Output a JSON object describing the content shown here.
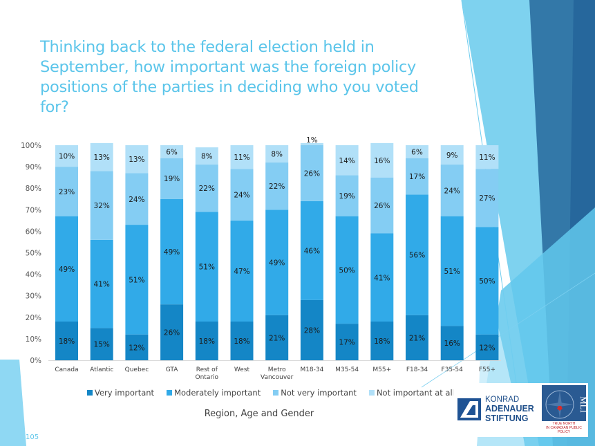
{
  "slide": {
    "title": "Thinking back to the federal election held in September, how important was the foreign policy positions of the parties in deciding who you voted for?",
    "page_number": "105",
    "x_axis_title": "Region, Age and Gender",
    "logos": {
      "kas_line1": "KONRAD",
      "kas_line2": "ADENAUER",
      "kas_line3": "STIFTUNG",
      "mli_name": "MLI",
      "mli_tagline1": "TRUE NORTH",
      "mli_tagline2": "IN CANADIAN PUBLIC POLICY"
    }
  },
  "chart_data": {
    "type": "bar",
    "stacked": true,
    "title": "Thinking back to the federal election held in September, how important was the foreign policy positions of the parties in deciding who you voted for?",
    "xlabel": "Region, Age and Gender",
    "ylabel": "",
    "ylim": [
      0,
      100
    ],
    "yticks": [
      "0%",
      "10%",
      "20%",
      "30%",
      "40%",
      "50%",
      "60%",
      "70%",
      "80%",
      "90%",
      "100%"
    ],
    "grid": false,
    "legend_position": "bottom",
    "categories": [
      "Canada",
      "Atlantic",
      "Quebec",
      "GTA",
      "Rest of Ontario",
      "West",
      "Metro Vancouver",
      "M18-34",
      "M35-54",
      "M55+",
      "F18-34",
      "F35-54",
      "F55+"
    ],
    "category_lines": [
      [
        "Canada"
      ],
      [
        "Atlantic"
      ],
      [
        "Quebec"
      ],
      [
        "GTA"
      ],
      [
        "Rest of",
        "Ontario"
      ],
      [
        "West"
      ],
      [
        "Metro",
        "Vancouver"
      ],
      [
        "M18-34"
      ],
      [
        "M35-54"
      ],
      [
        "M55+"
      ],
      [
        "F18-34"
      ],
      [
        "F35-54"
      ],
      [
        "F55+"
      ]
    ],
    "series": [
      {
        "name": "Very important",
        "color": "#1486c6",
        "values": [
          18,
          15,
          12,
          26,
          18,
          18,
          21,
          28,
          17,
          18,
          21,
          16,
          12
        ]
      },
      {
        "name": "Moderately important",
        "color": "#31aae8",
        "values": [
          49,
          41,
          51,
          49,
          51,
          47,
          49,
          46,
          50,
          41,
          56,
          51,
          50
        ]
      },
      {
        "name": "Not very important",
        "color": "#84cdf3",
        "values": [
          23,
          32,
          24,
          19,
          22,
          24,
          22,
          26,
          19,
          26,
          17,
          24,
          27
        ]
      },
      {
        "name": "Not important at all",
        "color": "#b1e0f8",
        "values": [
          10,
          13,
          13,
          6,
          8,
          11,
          8,
          1,
          14,
          16,
          6,
          9,
          11
        ]
      }
    ]
  }
}
